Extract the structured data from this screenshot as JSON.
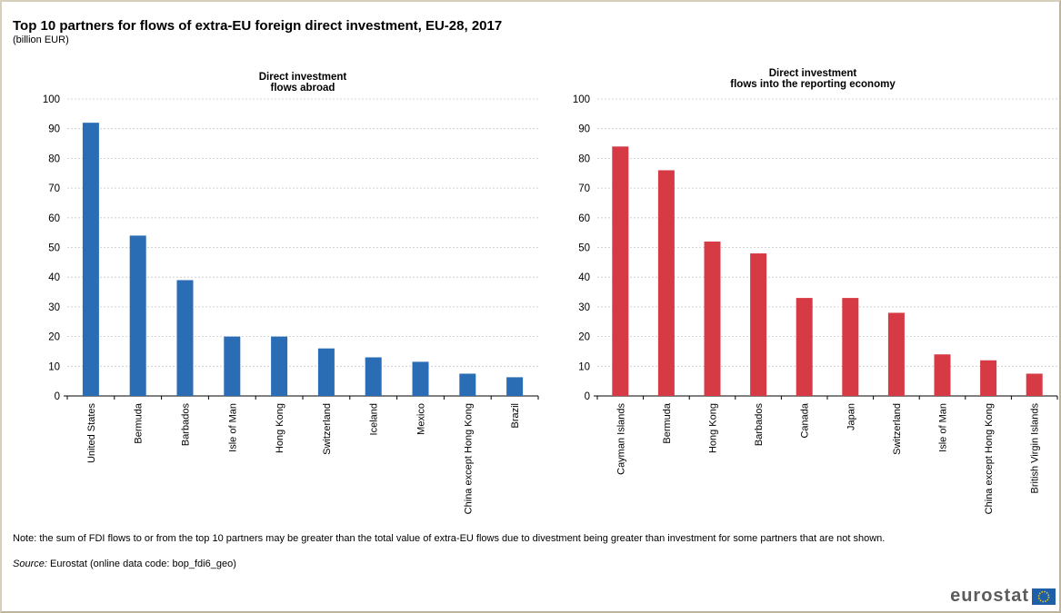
{
  "title": "Top 10 partners for flows of extra-EU foreign direct investment, EU-28, 2017",
  "subtitle": "(billion EUR)",
  "note": "Note: the sum of FDI flows to or from the top 10 partners may be greater than the total value of extra-EU flows due to divestment being greater than investment for some partners that are not shown.",
  "source_label": "Source:",
  "source_text": "Eurostat (online data code: bop_fdi6_geo)",
  "logo_text": "eurostat",
  "chart_data": [
    {
      "type": "bar",
      "title": "Direct investment\nflows abroad",
      "categories": [
        "United States",
        "Bermuda",
        "Barbados",
        "Isle of Man",
        "Hong Kong",
        "Switzerland",
        "Iceland",
        "Mexico",
        "China except Hong Kong",
        "Brazil"
      ],
      "values": [
        92,
        54,
        39,
        20,
        20,
        16,
        13,
        11.5,
        7.5,
        6.3
      ],
      "ylim": [
        0,
        100
      ],
      "yticks": [
        0,
        10,
        20,
        30,
        40,
        50,
        60,
        70,
        80,
        90,
        100
      ],
      "grid": true,
      "color": "#2a6db5"
    },
    {
      "type": "bar",
      "title": "Direct investment\nflows into the reporting economy",
      "categories": [
        "Cayman Islands",
        "Bermuda",
        "Hong Kong",
        "Barbados",
        "Canada",
        "Japan",
        "Switzerland",
        "Isle of Man",
        "China except Hong Kong",
        "British Virgin Islands"
      ],
      "values": [
        84,
        76,
        52,
        48,
        33,
        33,
        28,
        14,
        12,
        7.5
      ],
      "ylim": [
        0,
        100
      ],
      "yticks": [
        0,
        10,
        20,
        30,
        40,
        50,
        60,
        70,
        80,
        90,
        100
      ],
      "grid": true,
      "color": "#d63b45"
    }
  ]
}
